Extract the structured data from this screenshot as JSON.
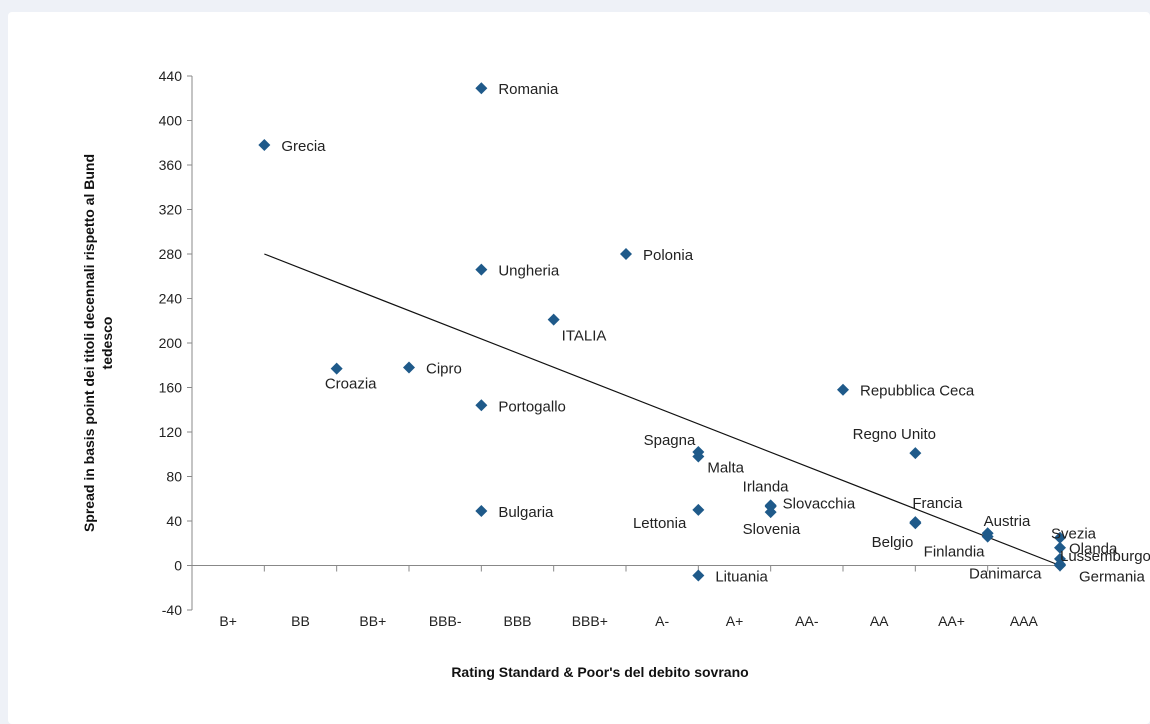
{
  "chart_data": {
    "type": "scatter",
    "xlabel": "Rating Standard & Poor's del debito sovrano",
    "ylabel": "Spread in basis point dei titoli decennali rispetto al Bund tedesco",
    "categories": [
      "B+",
      "BB",
      "BB+",
      "BBB-",
      "BBB",
      "BBB+",
      "A-",
      "A+",
      "AA-",
      "AA",
      "AA+",
      "AAA"
    ],
    "y_ticks": [
      "440",
      "400",
      "360",
      "320",
      "280",
      "240",
      "200",
      "160",
      "120",
      "80",
      "40",
      "0",
      "-40"
    ],
    "ylim": [
      -40,
      440
    ],
    "marker_color": "#1f5a8a",
    "trendline": {
      "from": {
        "x": 1,
        "y": 280
      },
      "to": {
        "x": 12,
        "y": 0
      }
    },
    "grid": false,
    "points": [
      {
        "name": "Grecia",
        "x": 1,
        "y": 378
      },
      {
        "name": "Croazia",
        "x": 2,
        "y": 177
      },
      {
        "name": "Cipro",
        "x": 3,
        "y": 178
      },
      {
        "name": "Romania",
        "x": 4,
        "y": 429
      },
      {
        "name": "Ungheria",
        "x": 4,
        "y": 266
      },
      {
        "name": "Portogallo",
        "x": 4,
        "y": 144
      },
      {
        "name": "Bulgaria",
        "x": 4,
        "y": 49
      },
      {
        "name": "ITALIA",
        "x": 5,
        "y": 221
      },
      {
        "name": "Polonia",
        "x": 6,
        "y": 280
      },
      {
        "name": "Spagna",
        "x": 7,
        "y": 102
      },
      {
        "name": "Malta",
        "x": 7,
        "y": 98
      },
      {
        "name": "Lettonia",
        "x": 7,
        "y": 50
      },
      {
        "name": "Lituania",
        "x": 7,
        "y": -9
      },
      {
        "name": "Irlanda",
        "x": 8,
        "y": 54
      },
      {
        "name": "Slovacchia",
        "x": 8,
        "y": 53
      },
      {
        "name": "Slovenia",
        "x": 8,
        "y": 48
      },
      {
        "name": "Repubblica Ceca",
        "x": 9,
        "y": 158
      },
      {
        "name": "Regno Unito",
        "x": 10,
        "y": 101
      },
      {
        "name": "Francia",
        "x": 10,
        "y": 39
      },
      {
        "name": "Belgio",
        "x": 10,
        "y": 38
      },
      {
        "name": "Austria",
        "x": 11,
        "y": 29
      },
      {
        "name": "Finlandia",
        "x": 11,
        "y": 26
      },
      {
        "name": "Svezia",
        "x": 12,
        "y": 25
      },
      {
        "name": "Olanda",
        "x": 12,
        "y": 16
      },
      {
        "name": "Lussemburgo",
        "x": 12,
        "y": 6
      },
      {
        "name": "Danimarca",
        "x": 12,
        "y": 1
      },
      {
        "name": "Germania",
        "x": 12,
        "y": 0
      }
    ]
  }
}
